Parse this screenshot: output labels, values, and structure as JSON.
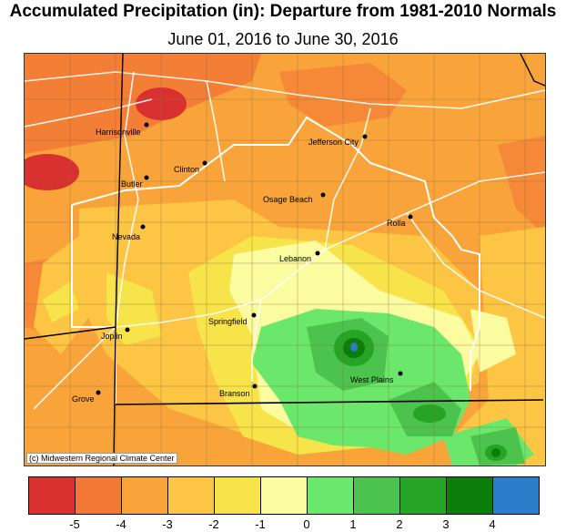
{
  "title": "Accumulated Precipitation (in): Departure from 1981-2010 Normals",
  "subtitle": "June 01, 2016 to June 30, 2016",
  "credit": "(c) Midwestern Regional Climate Center",
  "legend": {
    "colors": [
      "#d93030",
      "#f27836",
      "#f9a43a",
      "#fdc544",
      "#f7e34a",
      "#fbfba0",
      "#6be86b",
      "#4cc34c",
      "#25a425",
      "#0b7d0b",
      "#2a7ec9"
    ],
    "tick_labels": [
      "-5",
      "-4",
      "-3",
      "-2",
      "-1",
      "0",
      "1",
      "2",
      "3",
      "4"
    ]
  },
  "cities": [
    {
      "name": "Harrisonville"
    },
    {
      "name": "Jefferson City"
    },
    {
      "name": "Clinton"
    },
    {
      "name": "Butler"
    },
    {
      "name": "Osage Beach"
    },
    {
      "name": "Rolla"
    },
    {
      "name": "Nevada"
    },
    {
      "name": "Lebanon"
    },
    {
      "name": "Springfield"
    },
    {
      "name": "Joplin"
    },
    {
      "name": "West Plains"
    },
    {
      "name": "Branson"
    },
    {
      "name": "Grove"
    }
  ]
}
